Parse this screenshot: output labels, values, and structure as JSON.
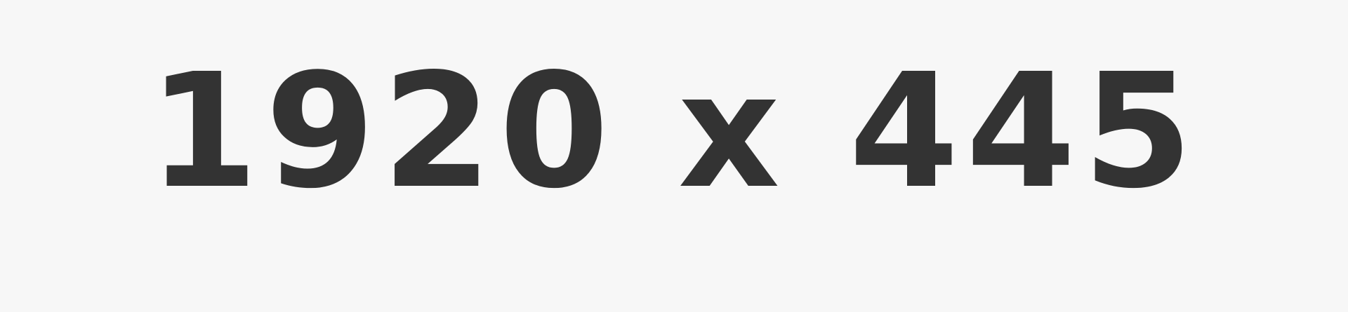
{
  "background_color": "#f7f7f7",
  "text_color": "#333333",
  "dimension_label": "1920 x 445"
}
